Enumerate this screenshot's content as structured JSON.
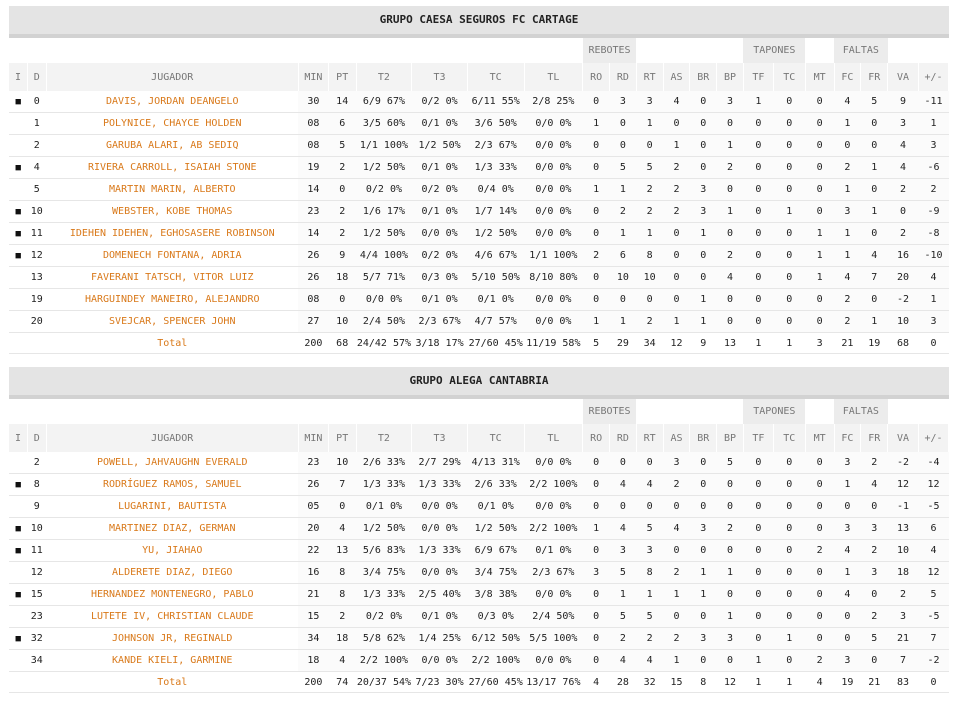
{
  "headers": [
    "I",
    "D",
    "JUGADOR",
    "MIN",
    "PT",
    "T2",
    "T3",
    "TC",
    "TL",
    "RO",
    "RD",
    "RT",
    "AS",
    "BR",
    "BP",
    "TF",
    "TC",
    "MT",
    "FC",
    "FR",
    "VA",
    "+/-"
  ],
  "groups": {
    "rebotes": "REBOTES",
    "tapones": "TAPONES",
    "faltas": "FALTAS"
  },
  "starter_mark": "■",
  "teams": [
    {
      "name": "GRUPO CAESA SEGUROS FC CARTAGE",
      "players": [
        {
          "starter": true,
          "num": "0",
          "name": "DAVIS, JORDAN DEANGELO",
          "stats": [
            "30",
            "14",
            "6/9 67%",
            "0/2 0%",
            "6/11 55%",
            "2/8 25%",
            "0",
            "3",
            "3",
            "4",
            "0",
            "3",
            "1",
            "0",
            "0",
            "4",
            "5",
            "9",
            "-11"
          ]
        },
        {
          "starter": false,
          "num": "1",
          "name": "POLYNICE, CHAYCE HOLDEN",
          "stats": [
            "08",
            "6",
            "3/5 60%",
            "0/1 0%",
            "3/6 50%",
            "0/0 0%",
            "1",
            "0",
            "1",
            "0",
            "0",
            "0",
            "0",
            "0",
            "0",
            "1",
            "0",
            "3",
            "1"
          ]
        },
        {
          "starter": false,
          "num": "2",
          "name": "GARUBA ALARI, AB SEDIQ",
          "stats": [
            "08",
            "5",
            "1/1 100%",
            "1/2 50%",
            "2/3 67%",
            "0/0 0%",
            "0",
            "0",
            "0",
            "1",
            "0",
            "1",
            "0",
            "0",
            "0",
            "0",
            "0",
            "4",
            "3"
          ]
        },
        {
          "starter": true,
          "num": "4",
          "name": "RIVERA CARROLL, ISAIAH STONE",
          "stats": [
            "19",
            "2",
            "1/2 50%",
            "0/1 0%",
            "1/3 33%",
            "0/0 0%",
            "0",
            "5",
            "5",
            "2",
            "0",
            "2",
            "0",
            "0",
            "0",
            "2",
            "1",
            "4",
            "-6"
          ]
        },
        {
          "starter": false,
          "num": "5",
          "name": "MARTIN MARIN, ALBERTO",
          "stats": [
            "14",
            "0",
            "0/2 0%",
            "0/2 0%",
            "0/4 0%",
            "0/0 0%",
            "1",
            "1",
            "2",
            "2",
            "3",
            "0",
            "0",
            "0",
            "0",
            "1",
            "0",
            "2",
            "2"
          ]
        },
        {
          "starter": true,
          "num": "10",
          "name": "WEBSTER, KOBE THOMAS",
          "stats": [
            "23",
            "2",
            "1/6 17%",
            "0/1 0%",
            "1/7 14%",
            "0/0 0%",
            "0",
            "2",
            "2",
            "2",
            "3",
            "1",
            "0",
            "1",
            "0",
            "3",
            "1",
            "0",
            "-9"
          ]
        },
        {
          "starter": true,
          "num": "11",
          "name": "IDEHEN IDEHEN, EGHOSASERE ROBINSON",
          "stats": [
            "14",
            "2",
            "1/2 50%",
            "0/0 0%",
            "1/2 50%",
            "0/0 0%",
            "0",
            "1",
            "1",
            "0",
            "1",
            "0",
            "0",
            "0",
            "1",
            "1",
            "0",
            "2",
            "-8"
          ]
        },
        {
          "starter": true,
          "num": "12",
          "name": "DOMENECH FONTANA, ADRIA",
          "stats": [
            "26",
            "9",
            "4/4 100%",
            "0/2 0%",
            "4/6 67%",
            "1/1 100%",
            "2",
            "6",
            "8",
            "0",
            "0",
            "2",
            "0",
            "0",
            "1",
            "1",
            "4",
            "16",
            "-10"
          ]
        },
        {
          "starter": false,
          "num": "13",
          "name": "FAVERANI TATSCH, VITOR LUIZ",
          "stats": [
            "26",
            "18",
            "5/7 71%",
            "0/3 0%",
            "5/10 50%",
            "8/10 80%",
            "0",
            "10",
            "10",
            "0",
            "0",
            "4",
            "0",
            "0",
            "1",
            "4",
            "7",
            "20",
            "4"
          ]
        },
        {
          "starter": false,
          "num": "19",
          "name": "HARGUINDEY MANEIRO, ALEJANDRO",
          "stats": [
            "08",
            "0",
            "0/0 0%",
            "0/1 0%",
            "0/1 0%",
            "0/0 0%",
            "0",
            "0",
            "0",
            "0",
            "1",
            "0",
            "0",
            "0",
            "0",
            "2",
            "0",
            "-2",
            "1"
          ]
        },
        {
          "starter": false,
          "num": "20",
          "name": "SVEJCAR, SPENCER JOHN",
          "stats": [
            "27",
            "10",
            "2/4 50%",
            "2/3 67%",
            "4/7 57%",
            "0/0 0%",
            "1",
            "1",
            "2",
            "1",
            "1",
            "0",
            "0",
            "0",
            "0",
            "2",
            "1",
            "10",
            "3"
          ]
        }
      ],
      "total": {
        "label": "Total",
        "stats": [
          "200",
          "68",
          "24/42 57%",
          "3/18 17%",
          "27/60 45%",
          "11/19 58%",
          "5",
          "29",
          "34",
          "12",
          "9",
          "13",
          "1",
          "1",
          "3",
          "21",
          "19",
          "68",
          "0"
        ]
      }
    },
    {
      "name": "GRUPO ALEGA CANTABRIA",
      "players": [
        {
          "starter": false,
          "num": "2",
          "name": "POWELL, JAHVAUGHN EVERALD",
          "stats": [
            "23",
            "10",
            "2/6 33%",
            "2/7 29%",
            "4/13 31%",
            "0/0 0%",
            "0",
            "0",
            "0",
            "3",
            "0",
            "5",
            "0",
            "0",
            "0",
            "3",
            "2",
            "-2",
            "-4"
          ]
        },
        {
          "starter": true,
          "num": "8",
          "name": "RODRÍGUEZ RAMOS, SAMUEL",
          "stats": [
            "26",
            "7",
            "1/3 33%",
            "1/3 33%",
            "2/6 33%",
            "2/2 100%",
            "0",
            "4",
            "4",
            "2",
            "0",
            "0",
            "0",
            "0",
            "0",
            "1",
            "4",
            "12",
            "12"
          ]
        },
        {
          "starter": false,
          "num": "9",
          "name": "LUGARINI, BAUTISTA",
          "stats": [
            "05",
            "0",
            "0/1 0%",
            "0/0 0%",
            "0/1 0%",
            "0/0 0%",
            "0",
            "0",
            "0",
            "0",
            "0",
            "0",
            "0",
            "0",
            "0",
            "0",
            "0",
            "-1",
            "-5"
          ]
        },
        {
          "starter": true,
          "num": "10",
          "name": "MARTINEZ DIAZ, GERMAN",
          "stats": [
            "20",
            "4",
            "1/2 50%",
            "0/0 0%",
            "1/2 50%",
            "2/2 100%",
            "1",
            "4",
            "5",
            "4",
            "3",
            "2",
            "0",
            "0",
            "0",
            "3",
            "3",
            "13",
            "6"
          ]
        },
        {
          "starter": true,
          "num": "11",
          "name": "YU, JIAHAO",
          "stats": [
            "22",
            "13",
            "5/6 83%",
            "1/3 33%",
            "6/9 67%",
            "0/1 0%",
            "0",
            "3",
            "3",
            "0",
            "0",
            "0",
            "0",
            "0",
            "2",
            "4",
            "2",
            "10",
            "4"
          ]
        },
        {
          "starter": false,
          "num": "12",
          "name": "ALDERETE DIAZ, DIEGO",
          "stats": [
            "16",
            "8",
            "3/4 75%",
            "0/0 0%",
            "3/4 75%",
            "2/3 67%",
            "3",
            "5",
            "8",
            "2",
            "1",
            "1",
            "0",
            "0",
            "0",
            "1",
            "3",
            "18",
            "12"
          ]
        },
        {
          "starter": true,
          "num": "15",
          "name": "HERNANDEZ MONTENEGRO, PABLO",
          "stats": [
            "21",
            "8",
            "1/3 33%",
            "2/5 40%",
            "3/8 38%",
            "0/0 0%",
            "0",
            "1",
            "1",
            "1",
            "1",
            "0",
            "0",
            "0",
            "0",
            "4",
            "0",
            "2",
            "5"
          ]
        },
        {
          "starter": false,
          "num": "23",
          "name": "LUTETE IV, CHRISTIAN CLAUDE",
          "stats": [
            "15",
            "2",
            "0/2 0%",
            "0/1 0%",
            "0/3 0%",
            "2/4 50%",
            "0",
            "5",
            "5",
            "0",
            "0",
            "1",
            "0",
            "0",
            "0",
            "0",
            "2",
            "3",
            "-5"
          ]
        },
        {
          "starter": true,
          "num": "32",
          "name": "JOHNSON JR, REGINALD",
          "stats": [
            "34",
            "18",
            "5/8 62%",
            "1/4 25%",
            "6/12 50%",
            "5/5 100%",
            "0",
            "2",
            "2",
            "2",
            "3",
            "3",
            "0",
            "1",
            "0",
            "0",
            "5",
            "21",
            "7"
          ]
        },
        {
          "starter": false,
          "num": "34",
          "name": "KANDE KIELI, GARMINE",
          "stats": [
            "18",
            "4",
            "2/2 100%",
            "0/0 0%",
            "2/2 100%",
            "0/0 0%",
            "0",
            "4",
            "4",
            "1",
            "0",
            "0",
            "1",
            "0",
            "2",
            "3",
            "0",
            "7",
            "-2"
          ]
        }
      ],
      "total": {
        "label": "Total",
        "stats": [
          "200",
          "74",
          "20/37 54%",
          "7/23 30%",
          "27/60 45%",
          "13/17 76%",
          "4",
          "28",
          "32",
          "15",
          "8",
          "12",
          "1",
          "1",
          "4",
          "19",
          "21",
          "83",
          "0"
        ]
      }
    }
  ]
}
